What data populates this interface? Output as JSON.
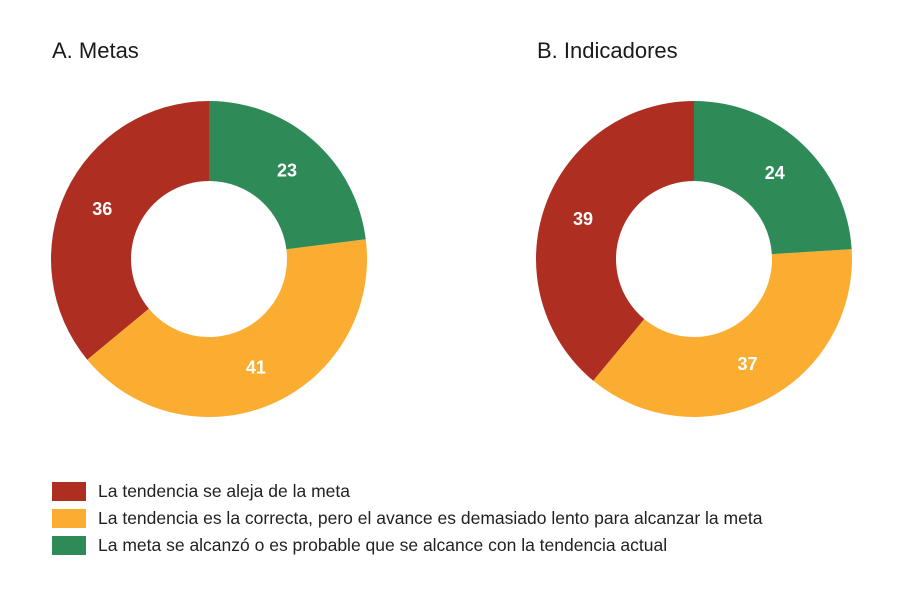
{
  "chart_data": [
    {
      "type": "pie",
      "title": "A. Metas",
      "categories": [
        "La tendencia se aleja de la meta",
        "La tendencia es la correcta, pero el avance es demasiado lento para alcanzar la meta",
        "La meta se alcanzó o es probable que se alcance con la tendencia actual"
      ],
      "values": [
        36,
        41,
        23
      ],
      "colors": [
        "#ae2e22",
        "#fbad32",
        "#2e8b57"
      ]
    },
    {
      "type": "pie",
      "title": "B. Indicadores",
      "categories": [
        "La tendencia se aleja de la meta",
        "La tendencia es la correcta, pero el avance es demasiado lento para alcanzar la meta",
        "La meta se alcanzó o es probable que se alcance con la tendencia actual"
      ],
      "values": [
        39,
        37,
        24
      ],
      "colors": [
        "#ae2e22",
        "#fbad32",
        "#2e8b57"
      ]
    }
  ],
  "legend": {
    "placement": "bottom",
    "items": [
      {
        "label": "La tendencia se aleja de la meta",
        "color": "#ae2e22"
      },
      {
        "label": "La tendencia es la correcta, pero el avance es demasiado lento para alcanzar la meta",
        "color": "#fbad32"
      },
      {
        "label": "La meta se alcanzó o es probable que se alcance con la tendencia actual",
        "color": "#2e8b57"
      }
    ]
  }
}
